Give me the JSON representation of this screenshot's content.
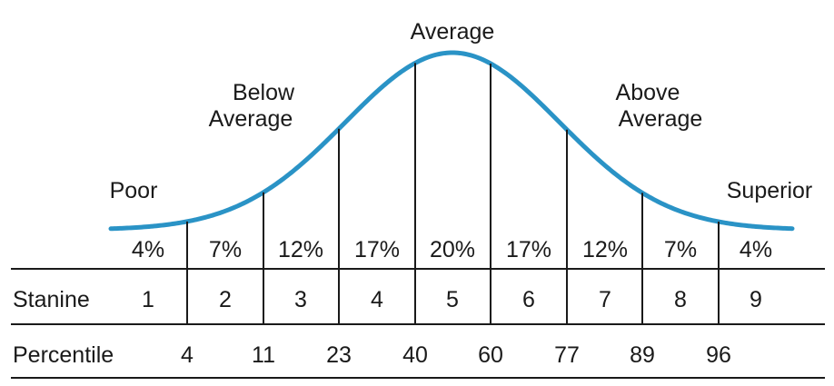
{
  "labels": {
    "average": "Average",
    "below_1": "Below",
    "below_2": "Average",
    "above_1": "Above",
    "above_2": "Average",
    "poor": "Poor",
    "superior": "Superior"
  },
  "percents": [
    "4%",
    "7%",
    "12%",
    "17%",
    "20%",
    "17%",
    "12%",
    "7%",
    "4%"
  ],
  "stanine": {
    "label": "Stanine",
    "values": [
      "1",
      "2",
      "3",
      "4",
      "5",
      "6",
      "7",
      "8",
      "9"
    ]
  },
  "percentile": {
    "label": "Percentile",
    "values": [
      "4",
      "11",
      "23",
      "40",
      "60",
      "77",
      "89",
      "96"
    ]
  },
  "colors": {
    "curve": "#2a93c6",
    "lines": "#1a1a1a"
  }
}
